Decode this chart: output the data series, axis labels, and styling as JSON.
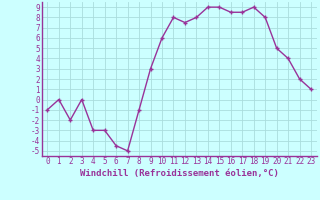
{
  "x": [
    0,
    1,
    2,
    3,
    4,
    5,
    6,
    7,
    8,
    9,
    10,
    11,
    12,
    13,
    14,
    15,
    16,
    17,
    18,
    19,
    20,
    21,
    22,
    23
  ],
  "y": [
    -1.0,
    0.0,
    -2.0,
    0.0,
    -3.0,
    -3.0,
    -4.5,
    -5.0,
    -1.0,
    3.0,
    6.0,
    8.0,
    7.5,
    8.0,
    9.0,
    9.0,
    8.5,
    8.5,
    9.0,
    8.0,
    5.0,
    4.0,
    2.0,
    1.0
  ],
  "line_color": "#993399",
  "marker": "+",
  "marker_size": 3,
  "background_color": "#ccffff",
  "grid_color": "#aadddd",
  "xlabel": "Windchill (Refroidissement éolien,°C)",
  "xlim": [
    -0.5,
    23.5
  ],
  "ylim": [
    -5.5,
    9.5
  ],
  "yticks": [
    -5,
    -4,
    -3,
    -2,
    -1,
    0,
    1,
    2,
    3,
    4,
    5,
    6,
    7,
    8,
    9
  ],
  "xticks": [
    0,
    1,
    2,
    3,
    4,
    5,
    6,
    7,
    8,
    9,
    10,
    11,
    12,
    13,
    14,
    15,
    16,
    17,
    18,
    19,
    20,
    21,
    22,
    23
  ],
  "line_width": 1.0,
  "tick_fontsize": 5.5,
  "xlabel_fontsize": 6.5,
  "xlabel_color": "#993399",
  "tick_color": "#993399",
  "spine_color": "#993399",
  "bottom_bar_color": "#993399"
}
